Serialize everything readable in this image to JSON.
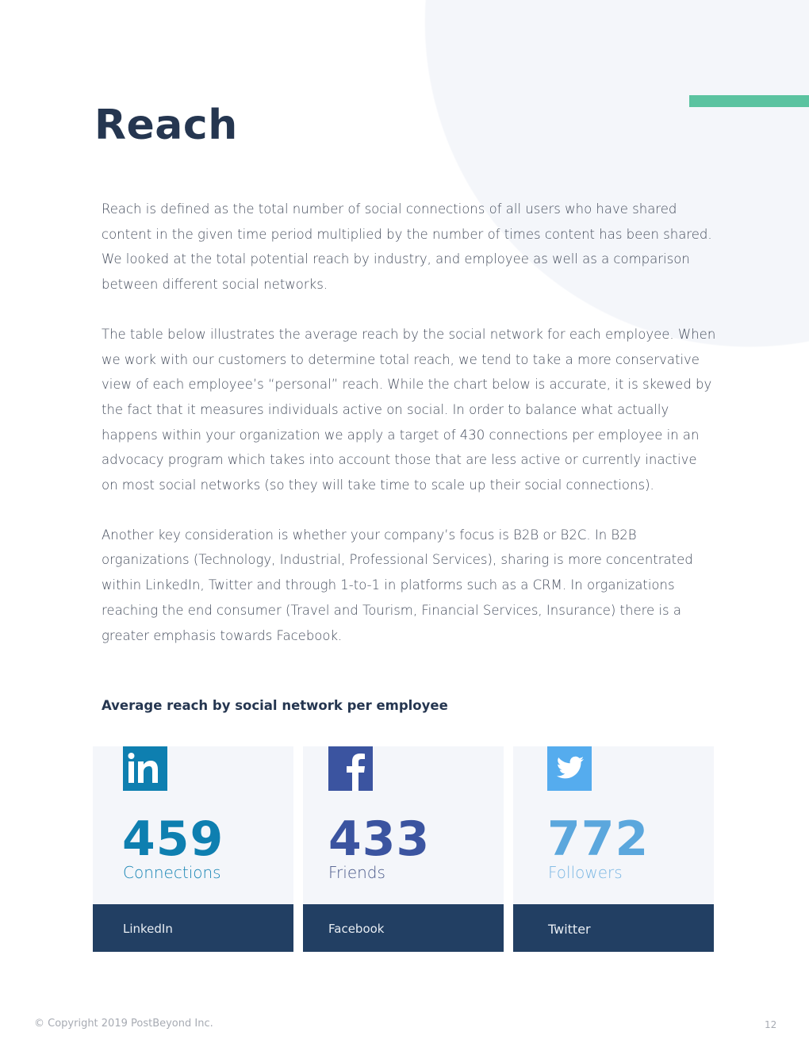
{
  "title": "Reach",
  "colors": {
    "accent_green": "#5bc3a0",
    "navy": "#223f63",
    "linkedin": "#0e7fb0",
    "facebook": "#3b54a0",
    "twitter": "#5ba7dd"
  },
  "paragraphs": [
    "Reach is defined as the total number of social connections of all users who have shared content in the given time period multiplied by the number of times content has been shared. We looked at the total potential reach by industry, and employee as well as a comparison between different social networks.",
    "The table below illustrates the average reach by the social network for each employee. When we work with our customers to determine total reach, we tend to take a more conservative view of each employee’s “personal” reach. While the chart below is accurate, it is skewed by the fact that it measures individuals active on social. In order to balance what actually happens within your organization we apply a target of 430 connections per employee in an advocacy program which takes into account those that are less active or currently inactive on most social networks (so they will take time to scale up their social connections).",
    "Another key consideration is whether your company’s focus is B2B or B2C. In B2B organizations (Technology, Industrial, Professional Services), sharing is more concentrated within LinkedIn, Twitter and through 1-to-1 in platforms such as a CRM. In organizations reaching the end consumer (Travel and Tourism, Financial Services, Insurance) there is a greater emphasis towards Facebook."
  ],
  "subheading": "Average reach by social network per employee",
  "cards": [
    {
      "network": "LinkedIn",
      "value": "459",
      "unit": "Connections",
      "icon": "linkedin-icon"
    },
    {
      "network": "Facebook",
      "value": "433",
      "unit": "Friends",
      "icon": "facebook-icon"
    },
    {
      "network": "Twitter",
      "value": "772",
      "unit": "Followers",
      "icon": "twitter-icon"
    }
  ],
  "footer": {
    "copyright": "© Copyright 2019 PostBeyond Inc.",
    "page_number": "12"
  }
}
